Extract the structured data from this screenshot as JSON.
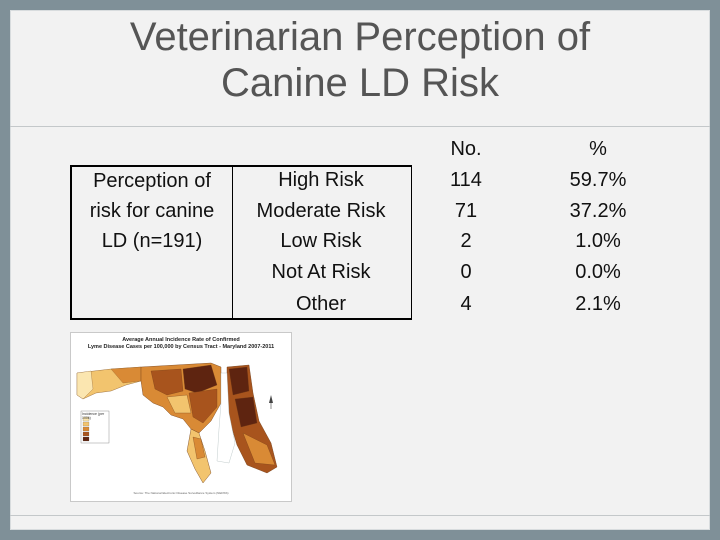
{
  "slide": {
    "title_line1": "Veterinarian Perception of",
    "title_line2": "Canine LD Risk"
  },
  "table": {
    "row_label_lines": [
      "Perception of",
      "risk for canine",
      "LD (n=191)"
    ],
    "col_no": "No.",
    "col_pct": "%",
    "rows": [
      {
        "category": "High Risk",
        "no": "114",
        "pct": "59.7%"
      },
      {
        "category": "Moderate Risk",
        "no": "71",
        "pct": "37.2%"
      },
      {
        "category": "Low Risk",
        "no": "2",
        "pct": "1.0%"
      },
      {
        "category": "Not At Risk",
        "no": "0",
        "pct": "0.0%"
      },
      {
        "category": "Other",
        "no": "4",
        "pct": "2.1%"
      }
    ]
  },
  "map": {
    "title_line1": "Average Annual Incidence Rate of Confirmed",
    "title_line2": "Lyme Disease Cases per 100,000 by Census Tract - Maryland 2007-2011",
    "legend_title": "Incidence (per 100k)",
    "source": "Source: The National Electronic Disease Surveillance System (NEDSS)",
    "colors": [
      "#fbe6b0",
      "#f2c46e",
      "#d98a35",
      "#a8541d",
      "#5e2410"
    ]
  }
}
